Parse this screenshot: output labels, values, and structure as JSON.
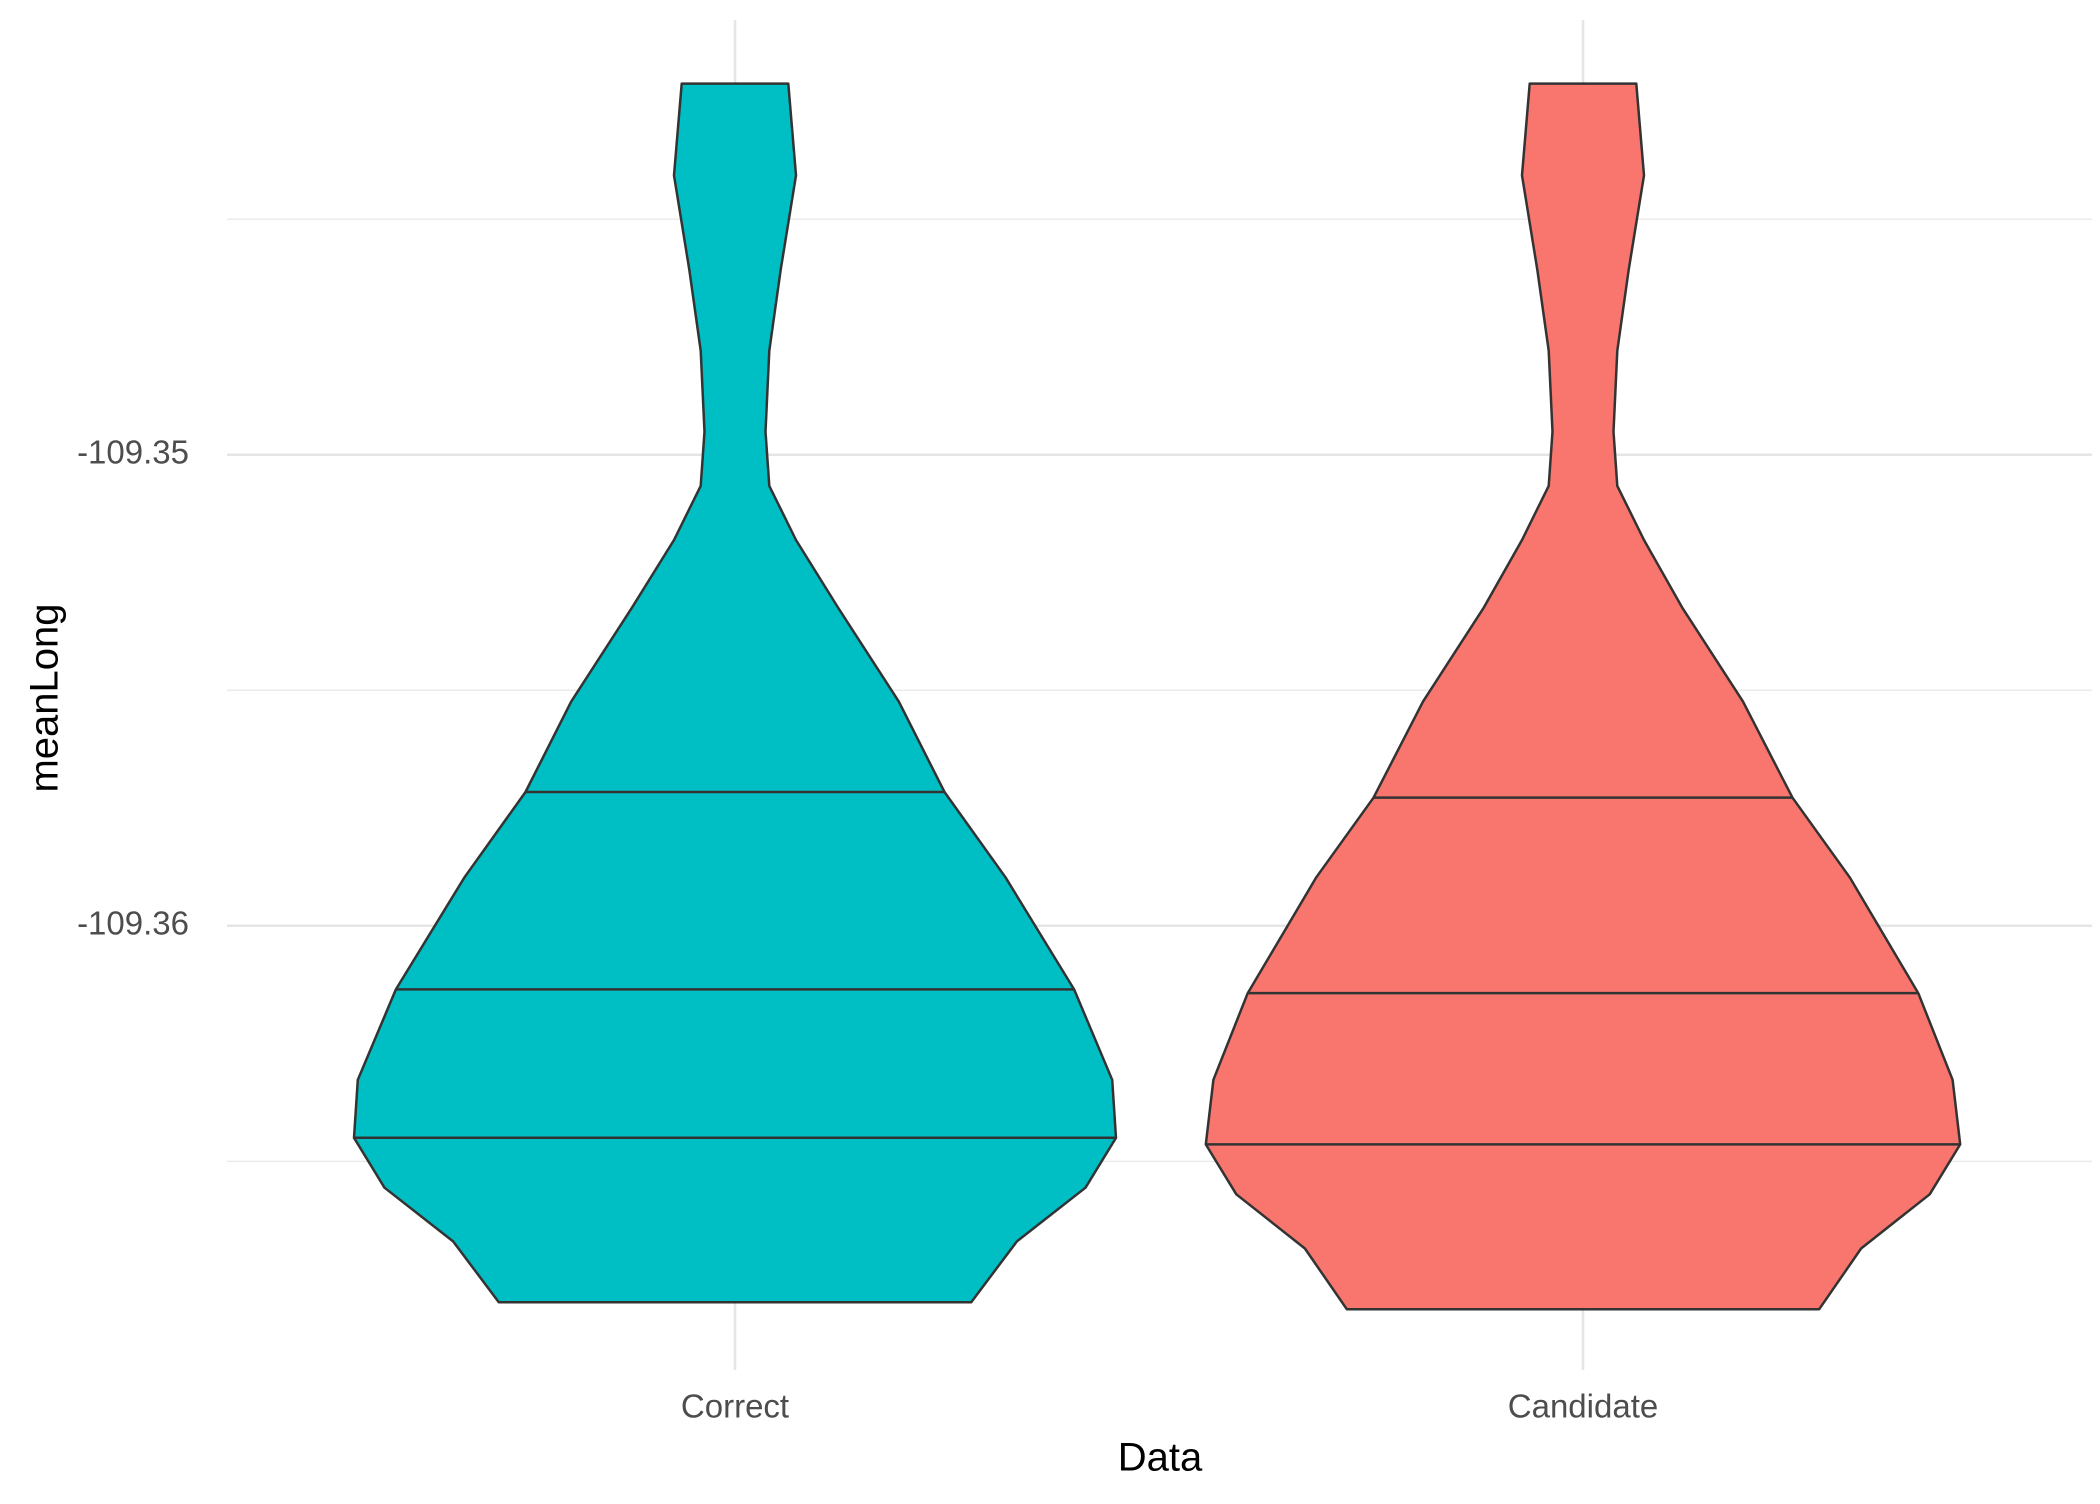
{
  "chart_data": {
    "type": "violin",
    "x_label": "Data",
    "y_label": "meanLong",
    "categories": [
      "Correct",
      "Candidate"
    ],
    "ylim": [
      -109.36943,
      -109.34077
    ],
    "yticks": [
      -109.36,
      -109.35
    ],
    "y_minor_grid": [
      -109.365,
      -109.355,
      -109.345
    ],
    "grid": true,
    "series": [
      {
        "name": "Correct",
        "color": "#00BFC4",
        "y": [
          -109.34212,
          -109.34407,
          -109.34607,
          -109.34779,
          -109.34951,
          -109.35066,
          -109.35181,
          -109.35324,
          -109.35524,
          -109.35716,
          -109.35897,
          -109.36135,
          -109.36327,
          -109.3645,
          -109.36556,
          -109.3667,
          -109.36799
        ],
        "width": [
          0.14,
          0.16,
          0.12,
          0.09,
          0.08,
          0.09,
          0.16,
          0.27,
          0.43,
          0.55,
          0.71,
          0.89,
          0.99,
          1,
          0.92,
          0.74,
          0.62
        ],
        "quantiles": [
          -109.35716,
          -109.36135,
          -109.3645
        ]
      },
      {
        "name": "Candidate",
        "color": "#F8766D",
        "y": [
          -109.34212,
          -109.34407,
          -109.34607,
          -109.34779,
          -109.34951,
          -109.35066,
          -109.35181,
          -109.35324,
          -109.35524,
          -109.35728,
          -109.35897,
          -109.36143,
          -109.36327,
          -109.36464,
          -109.3657,
          -109.36685,
          -109.36814
        ],
        "width": [
          0.14,
          0.16,
          0.12,
          0.09,
          0.08,
          0.09,
          0.16,
          0.26,
          0.42,
          0.55,
          0.7,
          0.88,
          0.97,
          0.99,
          0.91,
          0.73,
          0.62
        ],
        "quantiles": [
          -109.35728,
          -109.36143,
          -109.36464
        ]
      }
    ]
  }
}
